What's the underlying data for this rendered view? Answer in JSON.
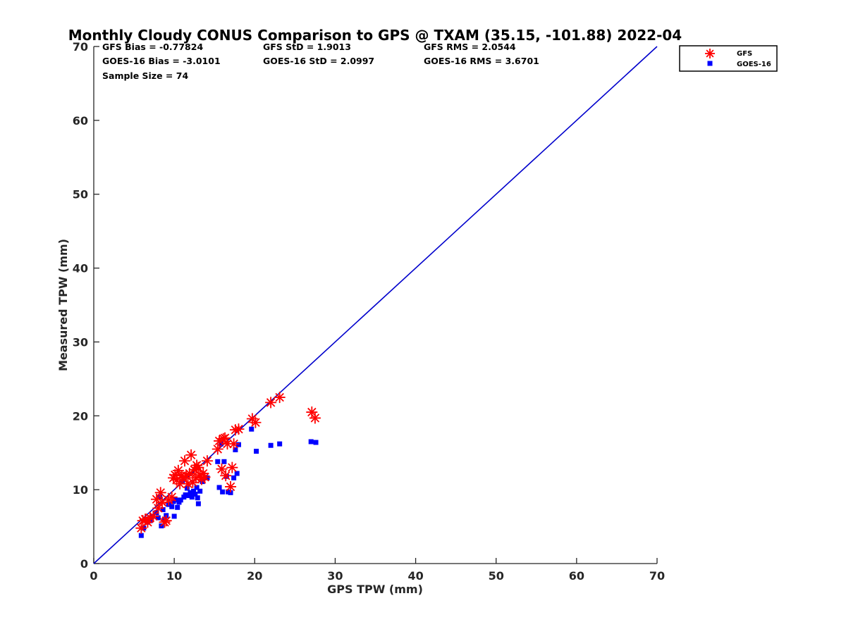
{
  "chart_data": {
    "type": "scatter",
    "title": "Monthly Cloudy CONUS Comparison to GPS @ TXAM (35.15, -101.88) 2022-04",
    "xlabel": "GPS TPW (mm)",
    "ylabel": "Measured TPW (mm)",
    "xlim": [
      0,
      70
    ],
    "ylim": [
      0,
      70
    ],
    "xticks": [
      "0",
      "10",
      "20",
      "30",
      "40",
      "50",
      "60",
      "70"
    ],
    "yticks": [
      "0",
      "10",
      "20",
      "30",
      "40",
      "50",
      "60",
      "70"
    ],
    "grid": false,
    "legend_position": "top-right outside",
    "reference_line": {
      "x": [
        0,
        70
      ],
      "y": [
        0,
        70
      ],
      "color": "#0000cc"
    },
    "stats": [
      [
        "GFS Bias = -0.77824",
        "GFS StD = 1.9013",
        "GFS RMS = 2.0544"
      ],
      [
        "GOES-16 Bias = -3.0101",
        "GOES-16 StD = 2.0997",
        "GOES-16 RMS = 3.6701"
      ],
      [
        "Sample Size = 74"
      ]
    ],
    "series": [
      {
        "name": "GFS",
        "marker": "asterisk",
        "color": "#ff0000",
        "points": [
          [
            5.9,
            4.8
          ],
          [
            6.1,
            5.8
          ],
          [
            6.4,
            6.0
          ],
          [
            6.7,
            5.6
          ],
          [
            7.0,
            6.2
          ],
          [
            7.4,
            6.4
          ],
          [
            7.8,
            8.7
          ],
          [
            8.0,
            7.5
          ],
          [
            8.3,
            9.6
          ],
          [
            8.5,
            8.3
          ],
          [
            8.8,
            5.6
          ],
          [
            9.0,
            5.8
          ],
          [
            9.3,
            8.6
          ],
          [
            9.7,
            9.0
          ],
          [
            9.9,
            11.6
          ],
          [
            10.1,
            12.0
          ],
          [
            10.3,
            11.3
          ],
          [
            10.5,
            12.6
          ],
          [
            10.7,
            10.8
          ],
          [
            10.9,
            11.9
          ],
          [
            11.1,
            11.6
          ],
          [
            11.3,
            13.9
          ],
          [
            11.5,
            11.9
          ],
          [
            11.7,
            10.8
          ],
          [
            11.9,
            12.2
          ],
          [
            12.1,
            14.7
          ],
          [
            12.3,
            11.0
          ],
          [
            12.5,
            12.7
          ],
          [
            12.7,
            11.6
          ],
          [
            12.8,
            13.3
          ],
          [
            13.0,
            13.0
          ],
          [
            13.2,
            12.0
          ],
          [
            13.4,
            11.4
          ],
          [
            13.6,
            12.2
          ],
          [
            13.8,
            11.7
          ],
          [
            14.1,
            13.9
          ],
          [
            15.4,
            15.5
          ],
          [
            15.6,
            16.6
          ],
          [
            15.9,
            12.8
          ],
          [
            16.1,
            16.9
          ],
          [
            16.3,
            17.0
          ],
          [
            16.4,
            11.9
          ],
          [
            16.6,
            16.2
          ],
          [
            17.0,
            10.4
          ],
          [
            17.2,
            13.0
          ],
          [
            17.4,
            16.2
          ],
          [
            17.6,
            18.1
          ],
          [
            18.0,
            18.2
          ],
          [
            19.7,
            19.6
          ],
          [
            20.1,
            19.1
          ],
          [
            22.0,
            21.8
          ],
          [
            23.1,
            22.5
          ],
          [
            27.1,
            20.5
          ],
          [
            27.5,
            19.7
          ]
        ]
      },
      {
        "name": "GOES-16",
        "marker": "square",
        "color": "#0000ff",
        "points": [
          [
            5.9,
            3.8
          ],
          [
            6.2,
            4.8
          ],
          [
            6.6,
            5.6
          ],
          [
            7.0,
            5.8
          ],
          [
            7.3,
            6.4
          ],
          [
            7.8,
            6.9
          ],
          [
            8.0,
            6.2
          ],
          [
            8.2,
            9.0
          ],
          [
            8.4,
            5.1
          ],
          [
            8.6,
            7.3
          ],
          [
            8.8,
            6.0
          ],
          [
            9.0,
            6.5
          ],
          [
            9.3,
            8.0
          ],
          [
            9.7,
            7.7
          ],
          [
            9.9,
            8.4
          ],
          [
            10.0,
            6.4
          ],
          [
            10.2,
            8.6
          ],
          [
            10.4,
            7.6
          ],
          [
            10.6,
            8.3
          ],
          [
            10.8,
            8.6
          ],
          [
            11.0,
            11.1
          ],
          [
            11.2,
            9.0
          ],
          [
            11.4,
            9.3
          ],
          [
            11.6,
            10.2
          ],
          [
            11.8,
            9.2
          ],
          [
            12.0,
            9.6
          ],
          [
            12.2,
            9.0
          ],
          [
            12.4,
            9.8
          ],
          [
            12.6,
            9.4
          ],
          [
            12.8,
            10.3
          ],
          [
            12.9,
            8.9
          ],
          [
            13.0,
            8.1
          ],
          [
            13.2,
            9.8
          ],
          [
            13.5,
            11.1
          ],
          [
            14.1,
            11.6
          ],
          [
            15.4,
            13.8
          ],
          [
            15.6,
            10.3
          ],
          [
            15.8,
            16.2
          ],
          [
            16.0,
            9.7
          ],
          [
            16.2,
            13.8
          ],
          [
            16.5,
            11.8
          ],
          [
            16.7,
            9.7
          ],
          [
            17.0,
            9.6
          ],
          [
            17.4,
            11.6
          ],
          [
            17.6,
            15.4
          ],
          [
            17.8,
            12.2
          ],
          [
            18.0,
            16.1
          ],
          [
            19.6,
            18.2
          ],
          [
            20.2,
            15.2
          ],
          [
            22.0,
            16.0
          ],
          [
            23.1,
            16.2
          ],
          [
            27.0,
            16.5
          ],
          [
            27.6,
            16.4
          ]
        ]
      }
    ]
  }
}
